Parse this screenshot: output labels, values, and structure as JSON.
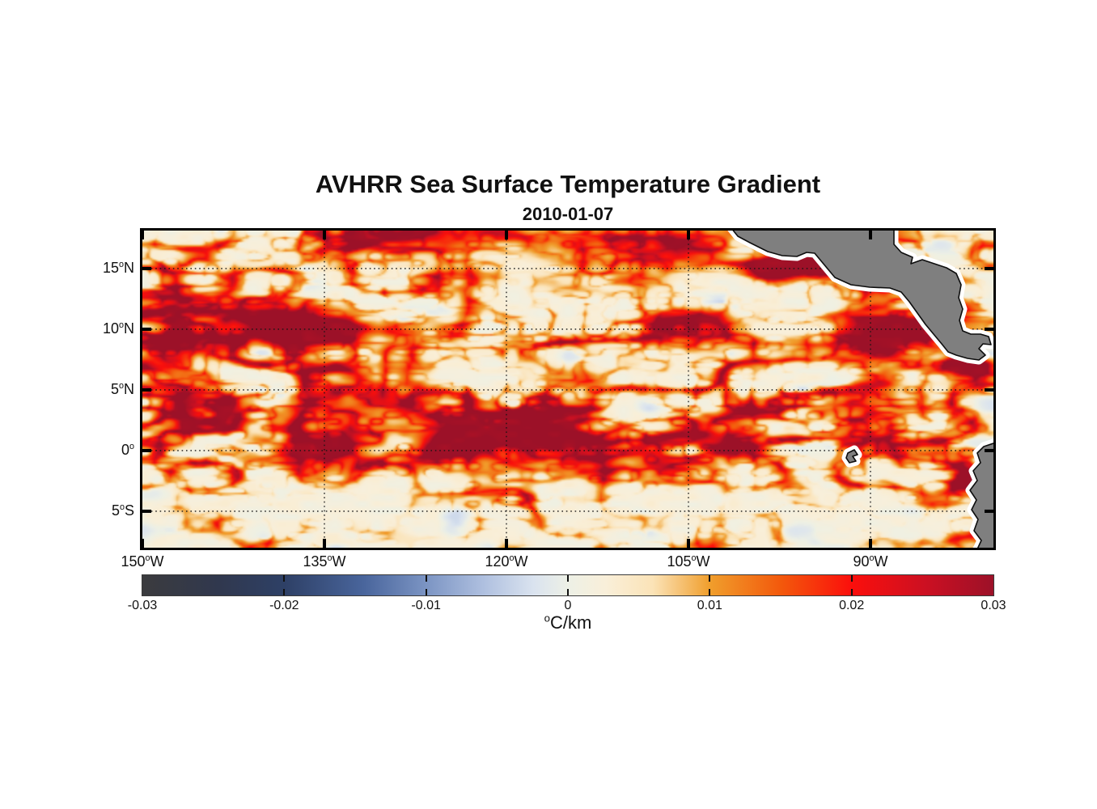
{
  "header": {
    "title": "AVHRR Sea Surface Temperature Gradient",
    "subtitle": "2010-01-07"
  },
  "chart_data": {
    "type": "heatmap",
    "title": "AVHRR Sea Surface Temperature Gradient",
    "date": "2010-01-07",
    "variable": "sea surface temperature gradient magnitude",
    "units": "°C/km",
    "x_axis": {
      "tick_labels": [
        "150°W",
        "135°W",
        "120°W",
        "105°W",
        "90°W"
      ],
      "tick_lons": [
        -150,
        -135,
        -120,
        -105,
        -90
      ],
      "lon_range": [
        -150,
        -79.9
      ]
    },
    "y_axis": {
      "tick_labels": [
        "15°N",
        "10°N",
        "5°N",
        "0°",
        "5°S"
      ],
      "tick_lats": [
        15,
        10,
        5,
        0,
        -5
      ],
      "lat_range": [
        18.13,
        -8.0
      ]
    },
    "grid": "dotted",
    "colorbar": {
      "orientation": "horizontal",
      "label": "°C/km",
      "tick_labels": [
        "-0.03",
        "-0.02",
        "-0.01",
        "0",
        "0.01",
        "0.02",
        "0.03"
      ],
      "tick_values": [
        -0.03,
        -0.02,
        -0.01,
        0,
        0.01,
        0.02,
        0.03
      ],
      "range": [
        -0.03,
        0.03
      ],
      "stops": [
        {
          "pos": 0.0,
          "color": "#3b3b3e"
        },
        {
          "pos": 0.09,
          "color": "#30384e"
        },
        {
          "pos": 0.167,
          "color": "#2e4066"
        },
        {
          "pos": 0.26,
          "color": "#49659c"
        },
        {
          "pos": 0.333,
          "color": "#7b94c3"
        },
        {
          "pos": 0.4,
          "color": "#aebfdf"
        },
        {
          "pos": 0.46,
          "color": "#dae3ef"
        },
        {
          "pos": 0.5,
          "color": "#edf0e6"
        },
        {
          "pos": 0.545,
          "color": "#f9efd9"
        },
        {
          "pos": 0.6,
          "color": "#fbe3b7"
        },
        {
          "pos": 0.667,
          "color": "#f09e2c"
        },
        {
          "pos": 0.75,
          "color": "#f3590c"
        },
        {
          "pos": 0.833,
          "color": "#fb0f0c"
        },
        {
          "pos": 0.92,
          "color": "#cc1022"
        },
        {
          "pos": 1.0,
          "color": "#9c1128"
        }
      ]
    },
    "land": {
      "fill_color": "#7f7f7f",
      "outline_color": "#0d0d0d",
      "coastal_buffer_color": "#ffffff",
      "features": [
        "mexico-central-america",
        "south-america-coast",
        "galapagos-islands"
      ]
    }
  }
}
